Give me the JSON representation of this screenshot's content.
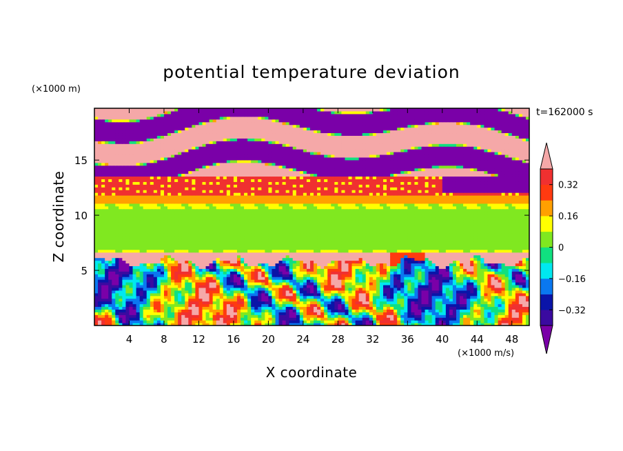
{
  "chart_data": {
    "type": "heatmap",
    "title": "potential temperature deviation",
    "xlabel": "X coordinate",
    "ylabel": "Z coordinate",
    "x_unit": "(×1000 m/s)",
    "y_unit": "(×1000 m)",
    "time_label": "t=162000 s",
    "xlim": [
      0,
      50
    ],
    "ylim": [
      0,
      19.7
    ],
    "x_ticks": [
      4,
      8,
      12,
      16,
      20,
      24,
      28,
      32,
      36,
      40,
      44,
      48
    ],
    "y_ticks": [
      5,
      10,
      15
    ],
    "colorbar": {
      "levels": [
        -0.4,
        -0.32,
        -0.24,
        -0.16,
        -0.08,
        0,
        0.08,
        0.16,
        0.24,
        0.32,
        0.4
      ],
      "tick_labels": [
        "0.32",
        "0.16",
        "0",
        "−0.16",
        "−0.32"
      ],
      "tick_values": [
        0.32,
        0.16,
        0,
        -0.16,
        -0.32
      ],
      "extend": "both",
      "colors": [
        "#7a00a8",
        "#3a0aa0",
        "#0a14a8",
        "#0a78f0",
        "#00e8f0",
        "#10e080",
        "#80e820",
        "#ffff00",
        "#ffa000",
        "#ff3a10",
        "#f03030",
        "#f5a8a8"
      ]
    },
    "bands": [
      {
        "z_range": [
          0,
          6.3
        ],
        "pattern": "turbulent mixed field, values spanning -0.4 to 0.4"
      },
      {
        "z_range": [
          5.5,
          6.5
        ],
        "value": 0.45,
        "note": "pink dome layer with purple troughs"
      },
      {
        "z_range": [
          6.5,
          11
        ],
        "value": 0.05,
        "note": "green/teal near-zero layer"
      },
      {
        "z_range": [
          11,
          11.8
        ],
        "value": 0.2,
        "note": "yellow-orange thin layer"
      },
      {
        "z_range": [
          11.8,
          13.5
        ],
        "value": 0.34,
        "note": "red layer"
      },
      {
        "z_range": [
          13.5,
          19.7
        ],
        "value": "alternating pink (>0.4) and purple (<-0.4) streaks"
      }
    ]
  }
}
